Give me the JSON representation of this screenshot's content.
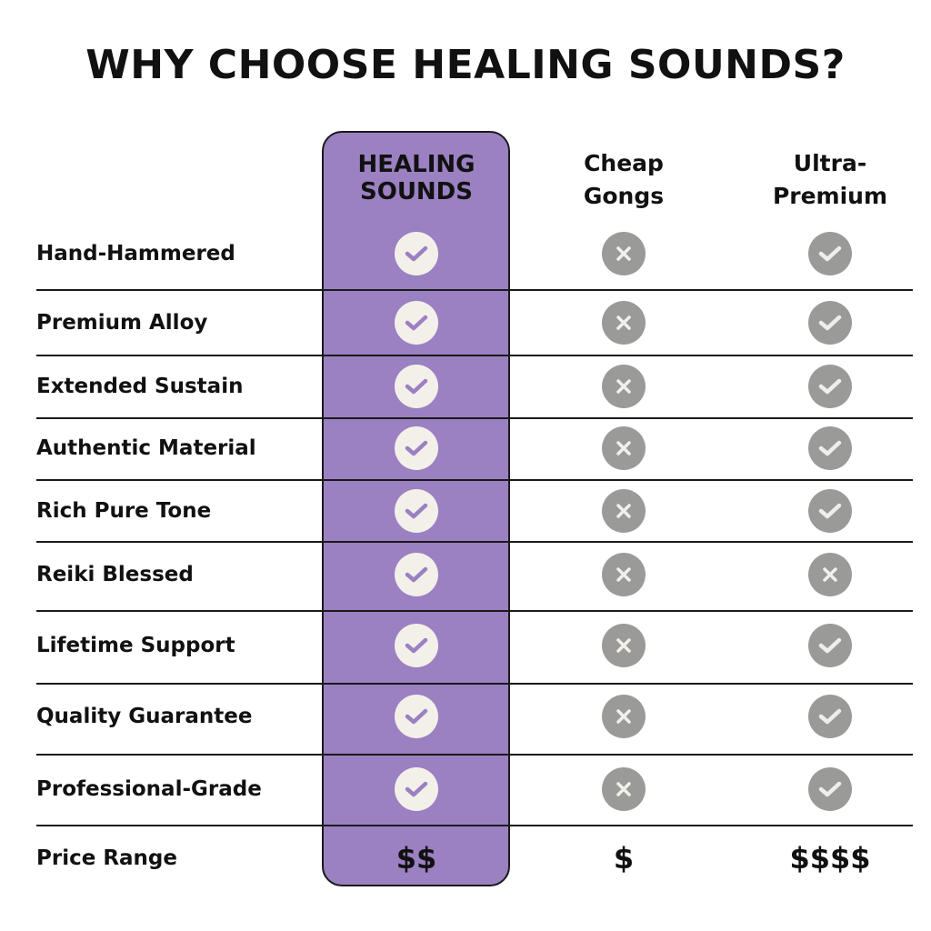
{
  "title": "WHY CHOOSE HEALING SOUNDS?",
  "columns": [
    {
      "label_lines": [
        "HEALING",
        "SOUNDS"
      ],
      "highlight": true
    },
    {
      "label_lines": [
        "Cheap",
        "Gongs"
      ],
      "highlight": false
    },
    {
      "label_lines": [
        "Ultra-",
        "Premium"
      ],
      "highlight": false
    }
  ],
  "rows": [
    {
      "label": "Hand-Hammered",
      "values": [
        "check",
        "x",
        "check"
      ]
    },
    {
      "label": "Premium Alloy",
      "values": [
        "check",
        "x",
        "check"
      ]
    },
    {
      "label": "Extended Sustain",
      "values": [
        "check",
        "x",
        "check"
      ]
    },
    {
      "label": "Authentic Material",
      "values": [
        "check",
        "x",
        "check"
      ]
    },
    {
      "label": "Rich Pure Tone",
      "values": [
        "check",
        "x",
        "check"
      ]
    },
    {
      "label": "Reiki Blessed",
      "values": [
        "check",
        "x",
        "x"
      ]
    },
    {
      "label": "Lifetime Support",
      "values": [
        "check",
        "x",
        "check"
      ]
    },
    {
      "label": "Quality Guarantee",
      "values": [
        "check",
        "x",
        "check"
      ]
    },
    {
      "label": "Professional-Grade",
      "values": [
        "check",
        "x",
        "check"
      ]
    }
  ],
  "price_row": {
    "label": "Price Range",
    "values": [
      "$$",
      "$",
      "$$$$"
    ]
  },
  "colors": {
    "highlight": "#9b80c2",
    "icon_gray": "#9a9a98",
    "icon_light": "#f3f0ea"
  }
}
